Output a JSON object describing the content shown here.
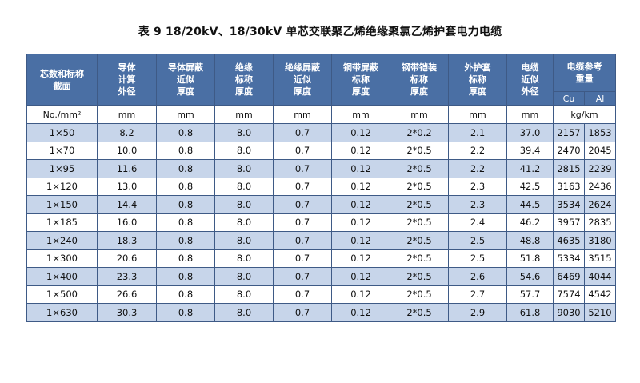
{
  "title": "表 9   18/20kV、18/30kV 单芯交联聚乙烯绝缘聚氯乙烯护套电力电缆",
  "headers": [
    [
      "芯数和标称",
      "截面"
    ],
    [
      "导体",
      "计算",
      "外径"
    ],
    [
      "导体屏蔽",
      "近似",
      "厚度"
    ],
    [
      "绝缘",
      "标称",
      "厚度"
    ],
    [
      "绝缘屏蔽",
      "近似",
      "厚度"
    ],
    [
      "铜带屏蔽",
      "标称",
      "厚度"
    ],
    [
      "钢带铠装",
      "标称",
      "厚度"
    ],
    [
      "外护套",
      "标称",
      "厚度"
    ],
    [
      "电缆",
      "近似",
      "外径"
    ]
  ],
  "weight_header": [
    "电缆参考",
    "重量"
  ],
  "weight_sub": [
    "Cu",
    "Al"
  ],
  "units": [
    "No./mm²",
    "mm",
    "mm",
    "mm",
    "mm",
    "mm",
    "mm",
    "mm",
    "mm",
    "kg/km"
  ],
  "rows": [
    [
      "1×50",
      "8.2",
      "0.8",
      "8.0",
      "0.7",
      "0.12",
      "2*0.2",
      "2.1",
      "37.0",
      "2157",
      "1853"
    ],
    [
      "1×70",
      "10.0",
      "0.8",
      "8.0",
      "0.7",
      "0.12",
      "2*0.5",
      "2.2",
      "39.4",
      "2470",
      "2045"
    ],
    [
      "1×95",
      "11.6",
      "0.8",
      "8.0",
      "0.7",
      "0.12",
      "2*0.5",
      "2.2",
      "41.2",
      "2815",
      "2239"
    ],
    [
      "1×120",
      "13.0",
      "0.8",
      "8.0",
      "0.7",
      "0.12",
      "2*0.5",
      "2.3",
      "42.5",
      "3163",
      "2436"
    ],
    [
      "1×150",
      "14.4",
      "0.8",
      "8.0",
      "0.7",
      "0.12",
      "2*0.5",
      "2.3",
      "44.5",
      "3534",
      "2624"
    ],
    [
      "1×185",
      "16.0",
      "0.8",
      "8.0",
      "0.7",
      "0.12",
      "2*0.5",
      "2.4",
      "46.2",
      "3957",
      "2835"
    ],
    [
      "1×240",
      "18.3",
      "0.8",
      "8.0",
      "0.7",
      "0.12",
      "2*0.5",
      "2.5",
      "48.8",
      "4635",
      "3180"
    ],
    [
      "1×300",
      "20.6",
      "0.8",
      "8.0",
      "0.7",
      "0.12",
      "2*0.5",
      "2.5",
      "51.8",
      "5334",
      "3515"
    ],
    [
      "1×400",
      "23.3",
      "0.8",
      "8.0",
      "0.7",
      "0.12",
      "2*0.5",
      "2.6",
      "54.6",
      "6469",
      "4044"
    ],
    [
      "1×500",
      "26.6",
      "0.8",
      "8.0",
      "0.7",
      "0.12",
      "2*0.5",
      "2.7",
      "57.7",
      "7574",
      "4542"
    ],
    [
      "1×630",
      "30.3",
      "0.8",
      "8.0",
      "0.7",
      "0.12",
      "2*0.5",
      "2.9",
      "61.8",
      "9030",
      "5210"
    ]
  ]
}
